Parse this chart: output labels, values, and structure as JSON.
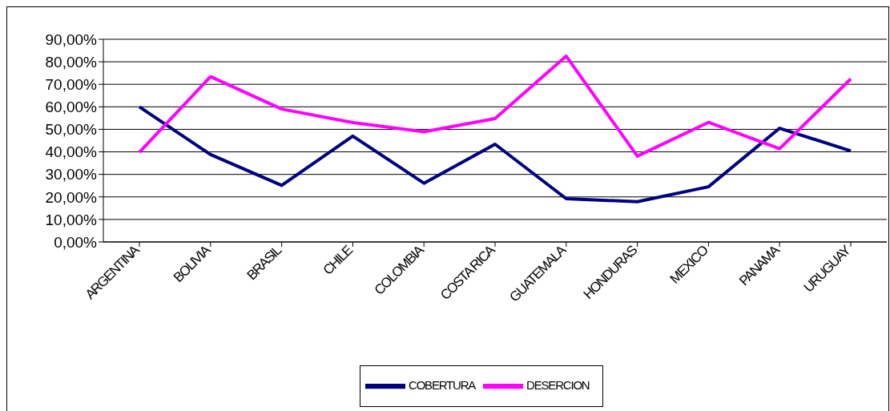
{
  "chart_data": {
    "type": "line",
    "categories": [
      "ARGENTINA",
      "BOLIVIA",
      "BRASIL",
      "CHILE",
      "COLOMBIA",
      "COSTA RICA",
      "GUATEMALA",
      "HONDURAS",
      "MEXICO",
      "PANAMA",
      "URUGUAY"
    ],
    "series": [
      {
        "name": "COBERTURA",
        "color": "#000080",
        "values": [
          60,
          38.8,
          25.1,
          47,
          26.1,
          43.4,
          19.2,
          17.9,
          24.5,
          50.5,
          40.4
        ]
      },
      {
        "name": "DESERCION",
        "color": "#ff00ff",
        "values": [
          39.8,
          73.4,
          59,
          53,
          48.9,
          54.8,
          82.5,
          38.1,
          53.1,
          41.4,
          72.4
        ]
      }
    ],
    "ylim": [
      0,
      90
    ],
    "yticks": [
      {
        "value": 0,
        "label": "0,00%"
      },
      {
        "value": 10,
        "label": "10,00%"
      },
      {
        "value": 20,
        "label": "20,00%"
      },
      {
        "value": 30,
        "label": "30,00%"
      },
      {
        "value": 40,
        "label": "40,00%"
      },
      {
        "value": 50,
        "label": "50,00%"
      },
      {
        "value": 60,
        "label": "60,00%"
      },
      {
        "value": 70,
        "label": "70,00%"
      },
      {
        "value": 80,
        "label": "80,00%"
      },
      {
        "value": 90,
        "label": "90,00%"
      }
    ],
    "grid": "y",
    "legend": "bottom",
    "marker": "none",
    "line_style": "solid"
  }
}
